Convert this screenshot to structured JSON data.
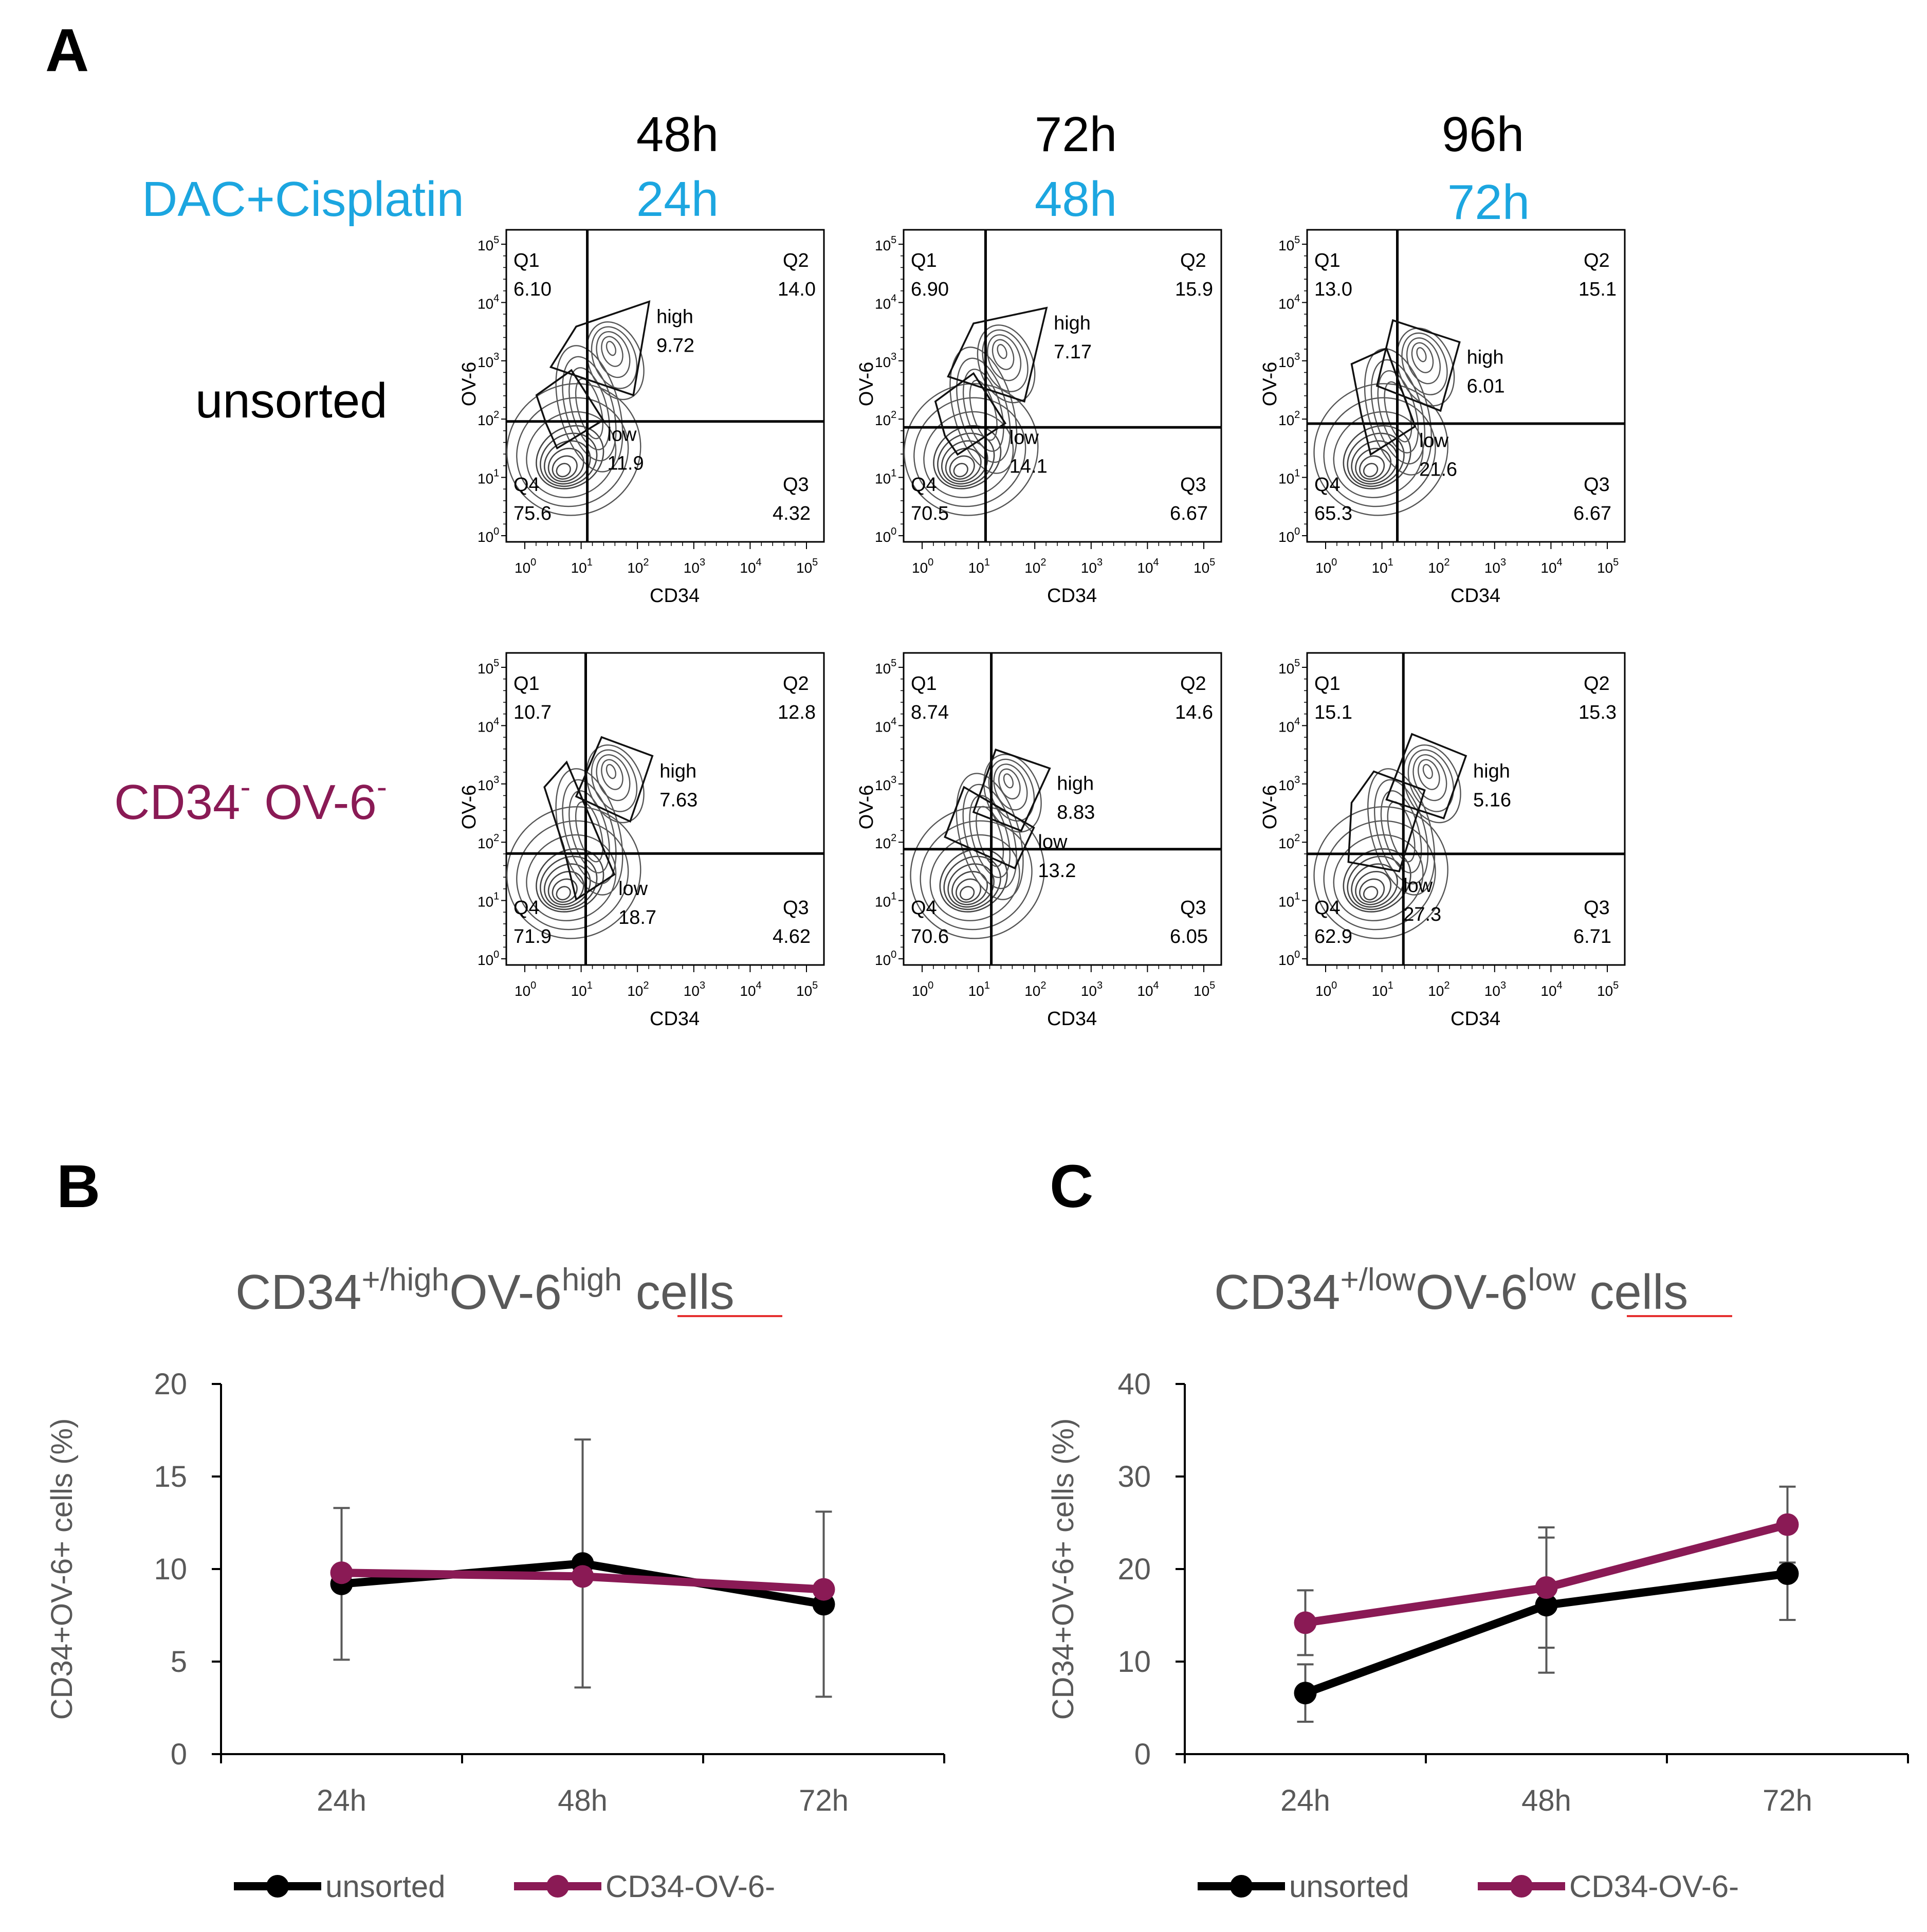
{
  "colors": {
    "black": "#000000",
    "blue": "#1ca6e0",
    "maroon": "#8a1a55",
    "axis_gray": "#595959",
    "red_underline": "#e53030"
  },
  "panel_a": {
    "label": "A",
    "treatment_label": "DAC+Cisplatin",
    "columns": [
      {
        "time": "48h",
        "treatment_time": "24h"
      },
      {
        "time": "72h",
        "treatment_time": "48h"
      },
      {
        "time": "96h",
        "treatment_time": "72h"
      }
    ],
    "rows": [
      {
        "label": "unsorted",
        "label_main": "unsorted",
        "color_key": "black"
      },
      {
        "label": "CD34- OV-6-",
        "label_main": "CD34",
        "label_sup": "-",
        "label_main2": " OV-6",
        "label_sup2": "-",
        "color_key": "maroon"
      }
    ],
    "axis_x": "CD34",
    "axis_y": "OV-6",
    "tick_base": "10",
    "tick_exponents": [
      "0",
      "1",
      "2",
      "3",
      "4",
      "5"
    ],
    "gate_labels": {
      "high": "high",
      "low": "low"
    },
    "quadrant_names": [
      "Q1",
      "Q2",
      "Q3",
      "Q4"
    ],
    "plots": [
      {
        "row": 0,
        "col": 0,
        "Q1": "6.10",
        "Q2": "14.0",
        "Q3": "4.32",
        "Q4": "75.6",
        "high": "9.72",
        "low": "11.9"
      },
      {
        "row": 0,
        "col": 1,
        "Q1": "6.90",
        "Q2": "15.9",
        "Q3": "6.67",
        "Q4": "70.5",
        "high": "7.17",
        "low": "14.1"
      },
      {
        "row": 0,
        "col": 2,
        "Q1": "13.0",
        "Q2": "15.1",
        "Q3": "6.67",
        "Q4": "65.3",
        "high": "6.01",
        "low": "21.6"
      },
      {
        "row": 1,
        "col": 0,
        "Q1": "10.7",
        "Q2": "12.8",
        "Q3": "4.62",
        "Q4": "71.9",
        "high": "7.63",
        "low": "18.7"
      },
      {
        "row": 1,
        "col": 1,
        "Q1": "8.74",
        "Q2": "14.6",
        "Q3": "6.05",
        "Q4": "70.6",
        "high": "8.83",
        "low": "13.2"
      },
      {
        "row": 1,
        "col": 2,
        "Q1": "15.1",
        "Q2": "15.3",
        "Q3": "6.71",
        "Q4": "62.9",
        "high": "5.16",
        "low": "27.3"
      }
    ]
  },
  "chart_data": [
    {
      "panel": "B",
      "type": "line",
      "title": "CD34+/highOV-6high cells",
      "title_parts": {
        "main": "CD34",
        "sup1": "+/high",
        "mid": "OV-6",
        "sup2": "high",
        "tail": "cells"
      },
      "ylabel": "CD34+OV-6+ cells (%)",
      "xlabel": "",
      "categories": [
        "24h",
        "48h",
        "72h"
      ],
      "ylim": [
        0,
        20
      ],
      "yticks": [
        0,
        5,
        10,
        15,
        20
      ],
      "grid": false,
      "legend_position": "bottom",
      "series": [
        {
          "name": "unsorted",
          "color_key": "black",
          "values": [
            9.2,
            10.3,
            8.1
          ],
          "errors": [
            4.1,
            6.7,
            5.0
          ]
        },
        {
          "name": "CD34-OV-6-",
          "color_key": "maroon",
          "values": [
            9.8,
            9.6,
            8.9
          ],
          "errors": [
            0.0,
            0.0,
            0.0
          ]
        }
      ]
    },
    {
      "panel": "C",
      "type": "line",
      "title": "CD34+/lowOV-6low cells",
      "title_parts": {
        "main": "CD34",
        "sup1": "+/low",
        "mid": "OV-6",
        "sup2": "low",
        "tail": "cells"
      },
      "ylabel": "CD34+OV-6+ cells (%)",
      "xlabel": "",
      "categories": [
        "24h",
        "48h",
        "72h"
      ],
      "ylim": [
        0,
        40
      ],
      "yticks": [
        0,
        10,
        20,
        30,
        40
      ],
      "grid": false,
      "legend_position": "bottom",
      "series": [
        {
          "name": "unsorted",
          "color_key": "black",
          "values": [
            6.6,
            16.1,
            19.5
          ],
          "errors": [
            3.1,
            7.3,
            5.0
          ]
        },
        {
          "name": "CD34-OV-6-",
          "color_key": "maroon",
          "values": [
            14.2,
            18.0,
            24.8
          ],
          "errors": [
            3.5,
            6.5,
            4.1
          ]
        }
      ]
    }
  ]
}
